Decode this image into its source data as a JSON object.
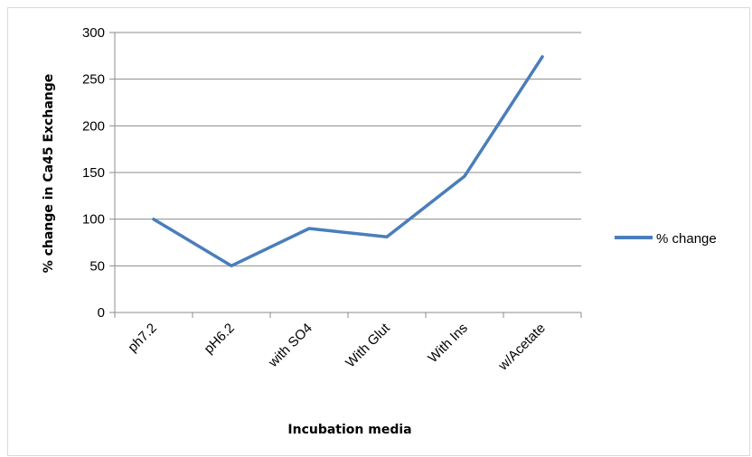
{
  "chart_data": {
    "type": "line",
    "categories": [
      "ph7.2",
      "pH6.2",
      "with SO4",
      "With Glut",
      "With Ins",
      "w/Acetate"
    ],
    "series": [
      {
        "name": "% change",
        "values": [
          100,
          50,
          90,
          81,
          146,
          274
        ],
        "color": "#4a7ebb"
      }
    ],
    "xlabel": "Incubation media",
    "ylabel": "% change in Ca45 Exchange",
    "ylim": [
      0,
      300
    ],
    "yticks": [
      0,
      50,
      100,
      150,
      200,
      250,
      300
    ],
    "grid": true,
    "legend": "right"
  }
}
